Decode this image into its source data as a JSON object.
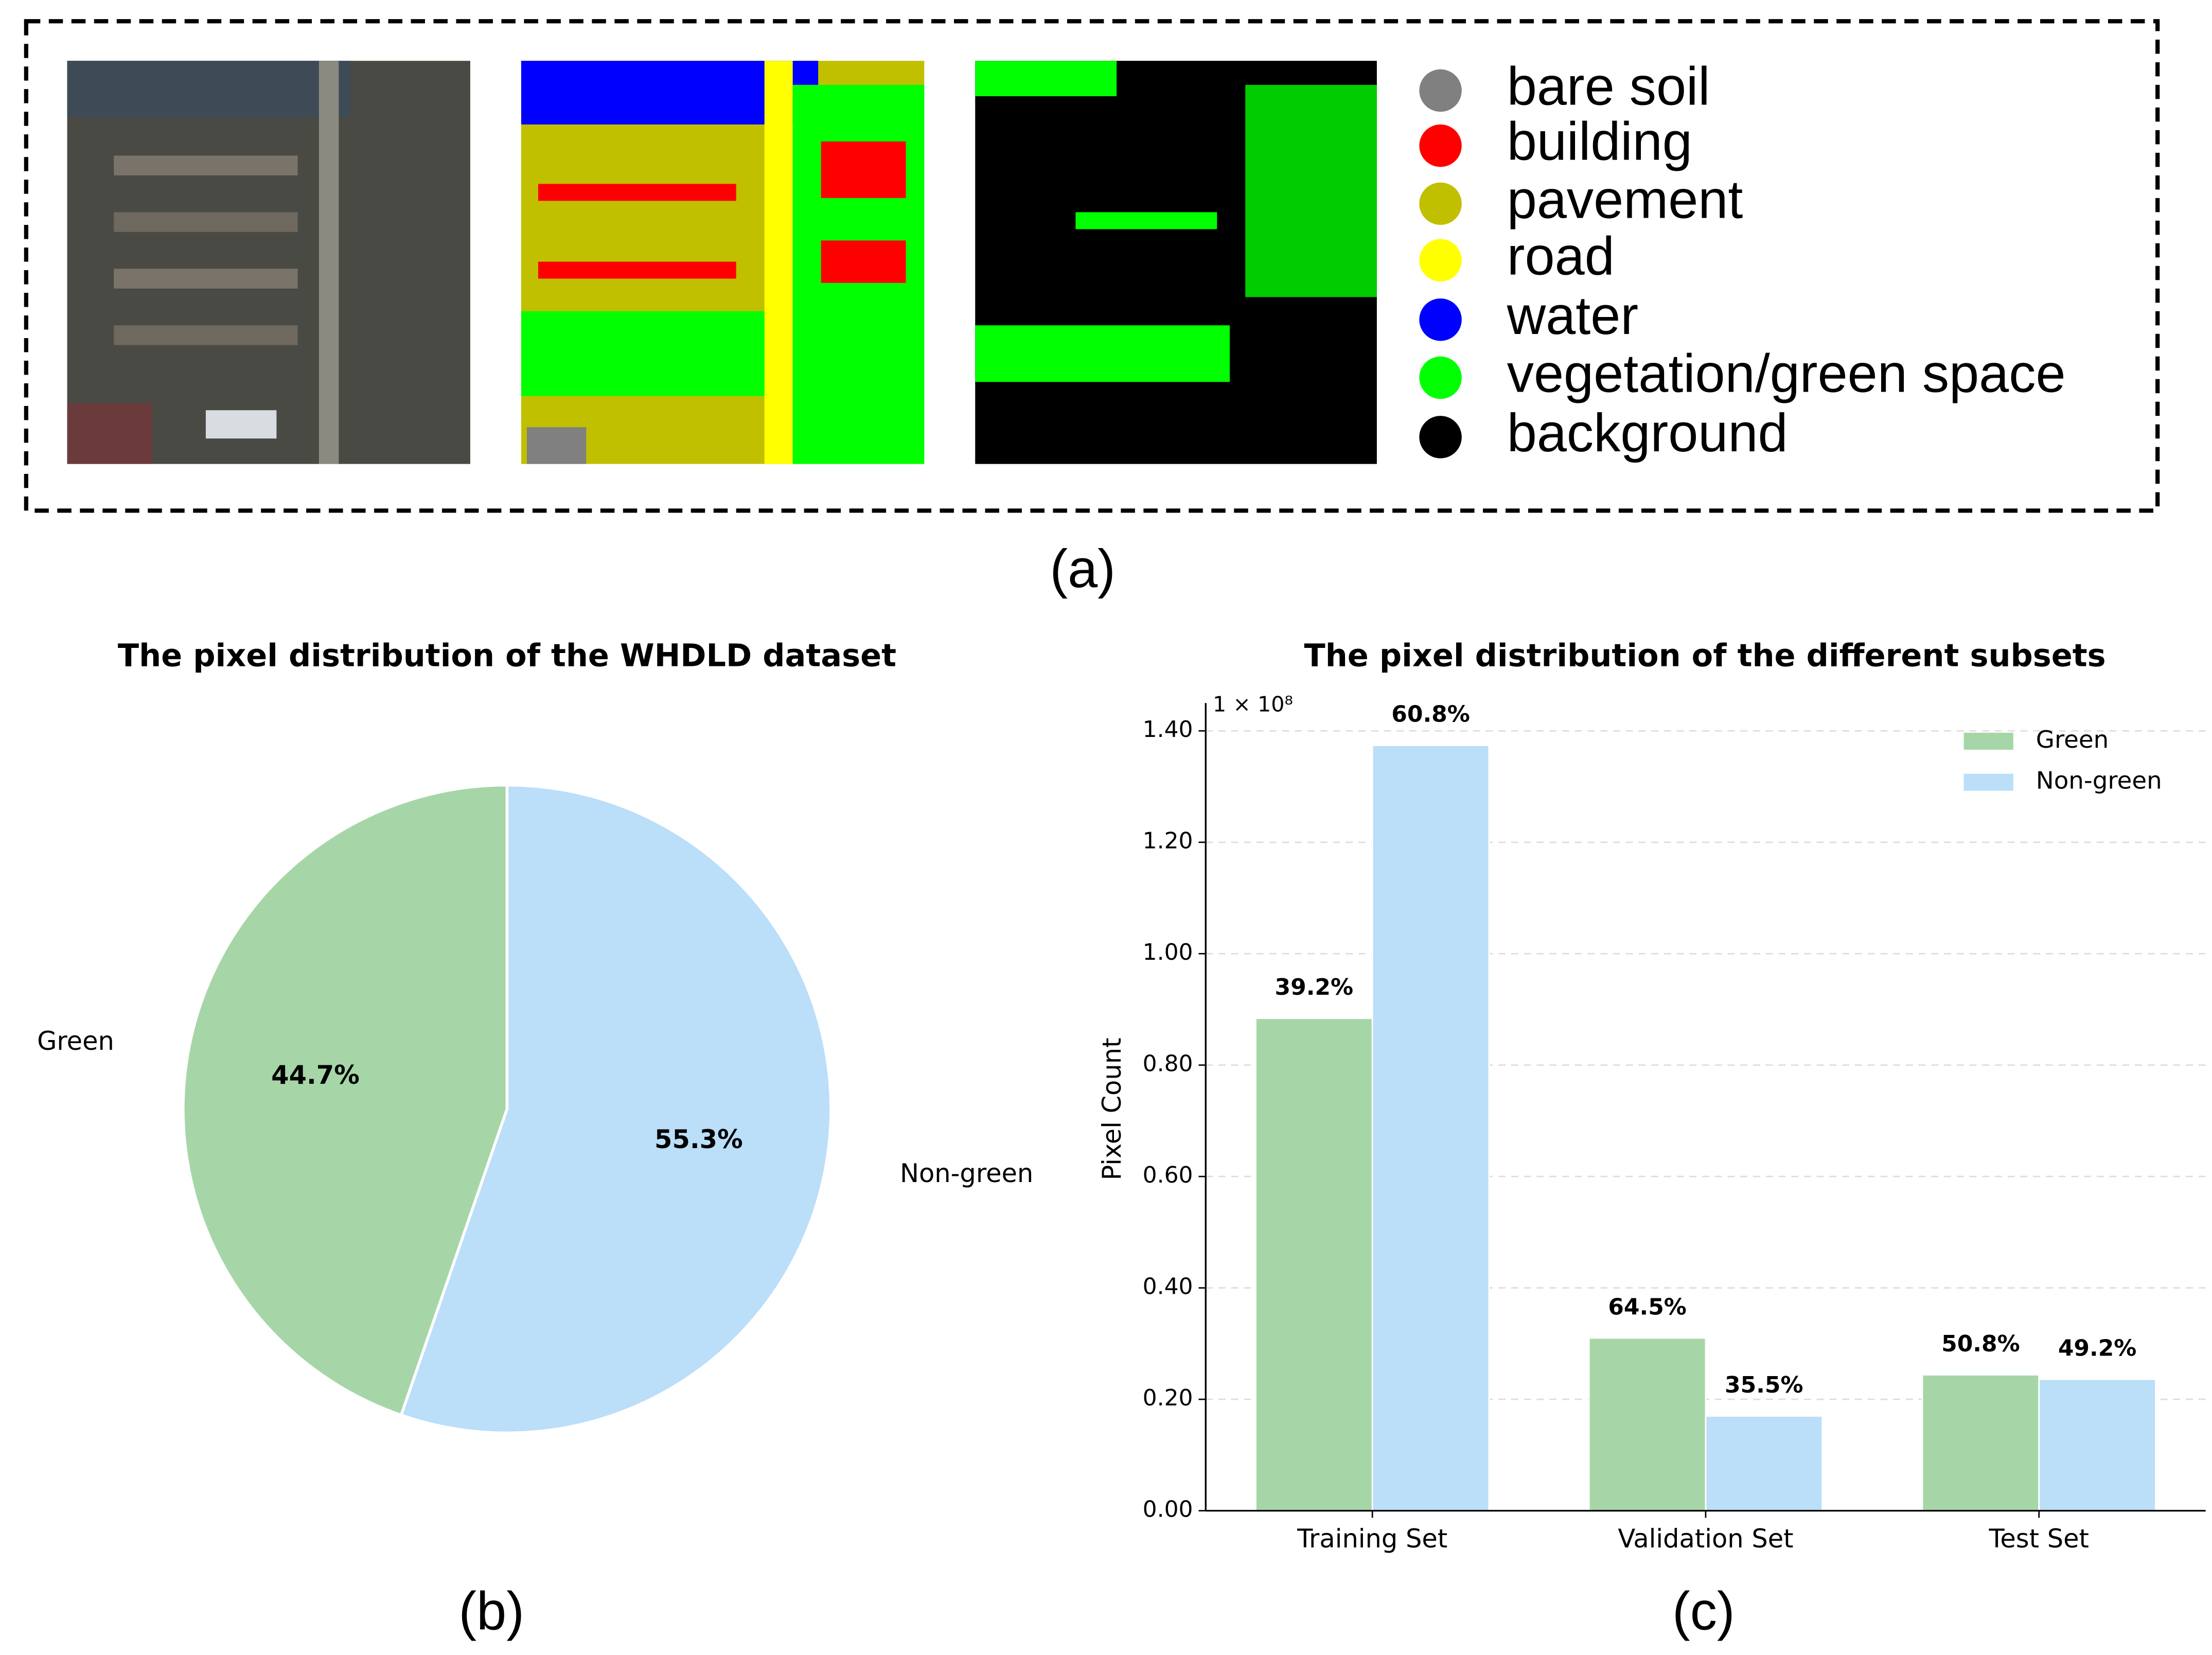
{
  "panel_a": {
    "label": "(a)",
    "legend": [
      {
        "name": "bare soil",
        "color": "#808080"
      },
      {
        "name": "building",
        "color": "#ff0000"
      },
      {
        "name": "pavement",
        "color": "#c0c000"
      },
      {
        "name": "road",
        "color": "#ffff00"
      },
      {
        "name": "water",
        "color": "#0000ff"
      },
      {
        "name": "vegetation/green space",
        "color": "#00ff00"
      },
      {
        "name": "background",
        "color": "#000000"
      }
    ]
  },
  "panel_labels": [
    "(b)",
    "(c)"
  ],
  "chart_data": [
    {
      "type": "pie",
      "title": "The pixel distribution of the WHDLD dataset",
      "categories": [
        "Green",
        "Non-green"
      ],
      "values": [
        44.7,
        55.3
      ],
      "value_labels": [
        "44.7%",
        "55.3%"
      ],
      "colors": [
        "#a6d6a7",
        "#bbdef9"
      ]
    },
    {
      "type": "bar",
      "title": "The pixel distribution of the different subsets",
      "categories": [
        "Training Set",
        "Validation Set",
        "Test Set"
      ],
      "y_label": "Pixel Count",
      "y_offset_label": "1 × 10⁸",
      "series": [
        {
          "name": "Green",
          "color": "#a6d6a7",
          "values": [
            0.884,
            0.31,
            0.244
          ],
          "percent_labels": [
            "39.2%",
            "64.5%",
            "50.8%"
          ]
        },
        {
          "name": "Non-green",
          "color": "#bbdef9",
          "values": [
            1.374,
            0.17,
            0.236
          ],
          "percent_labels": [
            "60.8%",
            "35.5%",
            "49.2%"
          ]
        }
      ],
      "ylim": [
        0,
        1.45
      ],
      "yticks": [
        {
          "value": 0,
          "label": "0.00"
        },
        {
          "value": 0.2,
          "label": "0.20"
        },
        {
          "value": 0.4,
          "label": "0.40"
        },
        {
          "value": 0.6,
          "label": "0.60"
        },
        {
          "value": 0.8,
          "label": "0.80"
        },
        {
          "value": 1.0,
          "label": "1.00"
        },
        {
          "value": 1.2,
          "label": "1.20"
        },
        {
          "value": 1.4,
          "label": "1.40"
        }
      ],
      "grid": true,
      "legend": "upper right"
    }
  ]
}
